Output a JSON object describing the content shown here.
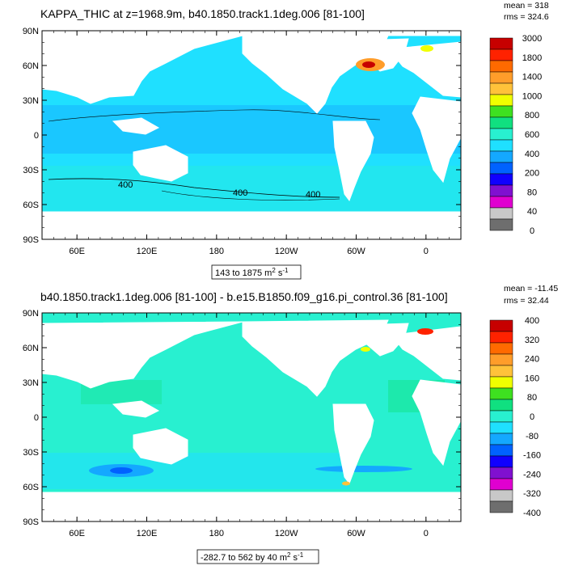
{
  "chart_data": [
    {
      "type": "heatmap",
      "title": "KAPPA_THIC at z=1968.9m, b40.1850.track1.1deg.006 [81-100]",
      "stats": {
        "mean": "mean = 318",
        "rms": "rms = 324.6"
      },
      "range_label": {
        "prefix": "143 to 1875 m",
        "sup": "2",
        "suffix": " s",
        "sup2": "-1"
      },
      "x_ticks": [
        "60E",
        "120E",
        "180",
        "120W",
        "60W",
        "0"
      ],
      "y_ticks": [
        "90N",
        "60N",
        "30N",
        "0",
        "30S",
        "60S",
        "90S"
      ],
      "contour_labels": [
        "400",
        "400",
        "400"
      ],
      "colorbar": {
        "labels": [
          "3000",
          "1800",
          "1400",
          "1000",
          "800",
          "600",
          "400",
          "200",
          "80",
          "40",
          "0"
        ],
        "colors": [
          "#c70000",
          "#ff2200",
          "#ff6a00",
          "#ff9d2a",
          "#ffc23a",
          "#f0ff00",
          "#3ee020",
          "#10e080",
          "#28f0d0",
          "#1fe0ff",
          "#14a8ff",
          "#0062ff",
          "#1000ff",
          "#8010d0",
          "#e000d0",
          "#c8c8c8",
          "#6e6e6e"
        ]
      },
      "dominant_color": "#1fe0ff"
    },
    {
      "type": "heatmap",
      "title": "b40.1850.track1.1deg.006 [81-100] - b.e15.B1850.f09_g16.pi_control.36 [81-100]",
      "stats": {
        "mean": "mean = -11.45",
        "rms": "rms = 32.44"
      },
      "range_label": {
        "prefix": "-282.7 to 562 by 40 m",
        "sup": "2",
        "suffix": " s",
        "sup2": "-1"
      },
      "x_ticks": [
        "60E",
        "120E",
        "180",
        "120W",
        "60W",
        "0"
      ],
      "y_ticks": [
        "90N",
        "60N",
        "30N",
        "0",
        "30S",
        "60S",
        "90S"
      ],
      "colorbar": {
        "labels": [
          "400",
          "320",
          "240",
          "160",
          "80",
          "0",
          "-80",
          "-160",
          "-240",
          "-320",
          "-400"
        ],
        "colors": [
          "#c70000",
          "#ff2200",
          "#ff6a00",
          "#ff9d2a",
          "#ffc23a",
          "#f0ff00",
          "#3ee020",
          "#10e080",
          "#28f0d0",
          "#1fe0ff",
          "#14a8ff",
          "#0062ff",
          "#1000ff",
          "#8010d0",
          "#e000d0",
          "#c8c8c8",
          "#6e6e6e"
        ]
      },
      "dominant_color": "#28f0d0"
    }
  ]
}
